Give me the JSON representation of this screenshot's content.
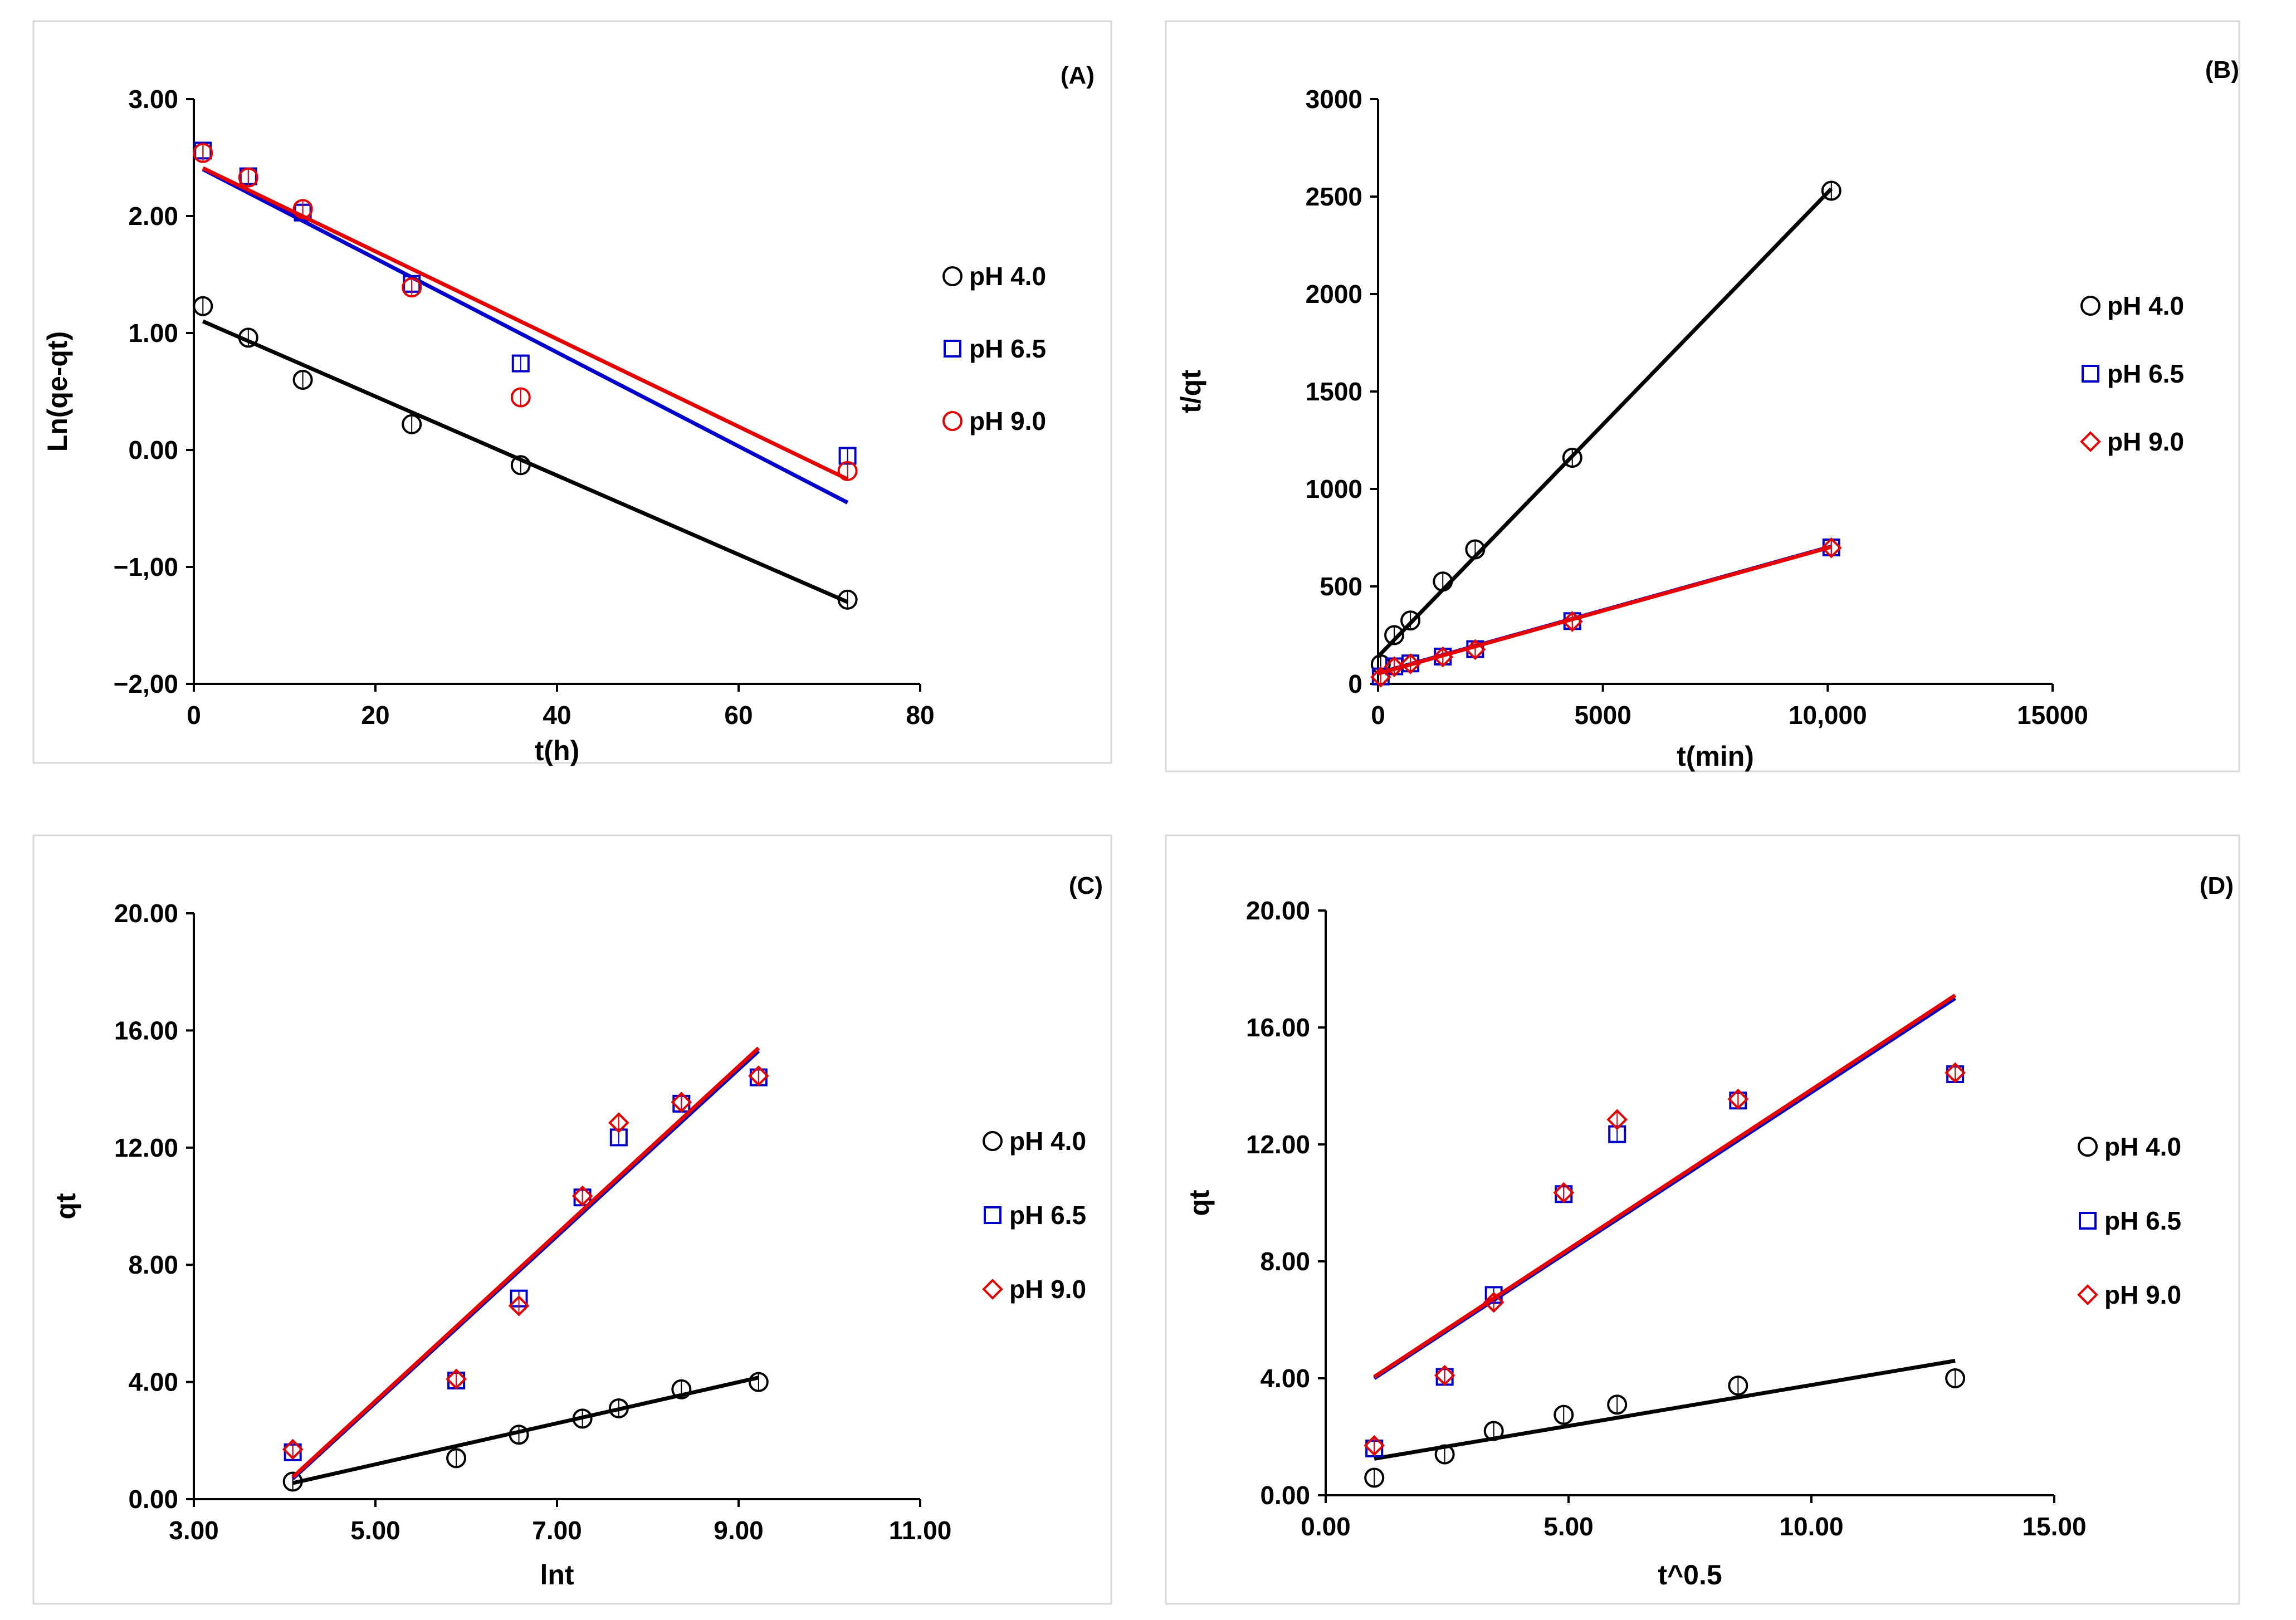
{
  "chart_data": [
    {
      "type": "scatter",
      "panel_label": "(A)",
      "xlabel": "t(h)",
      "ylabel": "Ln(qe-qt)",
      "xlim": [
        0,
        80
      ],
      "ylim": [
        -2,
        3
      ],
      "xticks": [
        0,
        20,
        40,
        60,
        80
      ],
      "xtick_labels": [
        "0",
        "20",
        "40",
        "60",
        "80"
      ],
      "yticks": [
        3,
        2,
        1,
        0,
        -1,
        -2
      ],
      "ytick_labels": [
        "3.00",
        "2.00",
        "1.00",
        "0.00",
        "−1,00",
        "−2,00"
      ],
      "legend_position": "right",
      "series": [
        {
          "name": "pH 4.0",
          "marker": "circle",
          "color": "#000000",
          "x": [
            1,
            6,
            12,
            24,
            36,
            72
          ],
          "y": [
            1.23,
            0.96,
            0.6,
            0.22,
            -0.13,
            -1.28
          ],
          "fit": {
            "x": [
              1,
              72
            ],
            "y": [
              1.1,
              -1.3
            ]
          }
        },
        {
          "name": "pH 6.5",
          "marker": "square",
          "color": "#0000cc",
          "x": [
            1,
            6,
            12,
            24,
            36,
            72
          ],
          "y": [
            2.56,
            2.34,
            2.03,
            1.42,
            0.74,
            -0.05
          ],
          "fit": {
            "x": [
              1,
              72
            ],
            "y": [
              2.4,
              -0.45
            ]
          }
        },
        {
          "name": "pH 9.0",
          "marker": "circle",
          "color": "#e60000",
          "x": [
            1,
            6,
            12,
            24,
            36,
            72
          ],
          "y": [
            2.54,
            2.33,
            2.06,
            1.39,
            0.45,
            -0.18
          ],
          "fit": {
            "x": [
              1,
              72
            ],
            "y": [
              2.41,
              -0.25
            ]
          }
        }
      ]
    },
    {
      "type": "scatter",
      "panel_label": "(B)",
      "xlabel": "t(min)",
      "ylabel": "t/qt",
      "xlim": [
        0,
        15000
      ],
      "ylim": [
        0,
        3000
      ],
      "xticks": [
        0,
        5000,
        10000,
        15000
      ],
      "xtick_labels": [
        "0",
        "5000",
        "10,000",
        "15000"
      ],
      "yticks": [
        0,
        500,
        1000,
        1500,
        2000,
        2500,
        3000
      ],
      "ytick_labels": [
        "0",
        "500",
        "1000",
        "1500",
        "2000",
        "2500",
        "3000"
      ],
      "legend_position": "right",
      "series": [
        {
          "name": "pH 4.0",
          "marker": "circle",
          "color": "#000000",
          "x": [
            60,
            360,
            720,
            1440,
            2160,
            4320,
            10080
          ],
          "y": [
            100,
            250,
            325,
            525,
            690,
            1160,
            2530
          ],
          "fit": {
            "x": [
              0,
              10080
            ],
            "y": [
              140,
              2540
            ]
          }
        },
        {
          "name": "pH 6.5",
          "marker": "square",
          "color": "#0000cc",
          "x": [
            60,
            360,
            720,
            1440,
            2160,
            4320,
            10080
          ],
          "y": [
            38,
            90,
            105,
            140,
            178,
            322,
            700
          ],
          "fit": {
            "x": [
              0,
              10080
            ],
            "y": [
              55,
              705
            ]
          }
        },
        {
          "name": "pH 9.0",
          "marker": "diamond",
          "color": "#e60000",
          "x": [
            60,
            360,
            720,
            1440,
            2160,
            4320,
            10080
          ],
          "y": [
            35,
            88,
            103,
            138,
            176,
            320,
            698
          ],
          "fit": {
            "x": [
              0,
              10080
            ],
            "y": [
              53,
              703
            ]
          }
        }
      ]
    },
    {
      "type": "scatter",
      "panel_label": "(C)",
      "xlabel": "lnt",
      "ylabel": "qt",
      "xlim": [
        3,
        11
      ],
      "ylim": [
        0,
        20
      ],
      "xticks": [
        3,
        5,
        7,
        9,
        11
      ],
      "xtick_labels": [
        "3.00",
        "5.00",
        "7.00",
        "9.00",
        "11.00"
      ],
      "yticks": [
        0,
        4,
        8,
        12,
        16,
        20
      ],
      "ytick_labels": [
        "0.00",
        "4.00",
        "8.00",
        "12.00",
        "16.00",
        "20.00"
      ],
      "legend_position": "right",
      "series": [
        {
          "name": "pH 4.0",
          "marker": "circle",
          "color": "#000000",
          "x": [
            4.09,
            5.89,
            6.58,
            7.28,
            7.68,
            8.37,
            9.22
          ],
          "y": [
            0.6,
            1.4,
            2.2,
            2.75,
            3.1,
            3.75,
            4.0
          ],
          "fit": {
            "x": [
              4.09,
              9.22
            ],
            "y": [
              0.55,
              4.15
            ]
          }
        },
        {
          "name": "pH 6.5",
          "marker": "square",
          "color": "#0000cc",
          "x": [
            4.09,
            5.89,
            6.58,
            7.28,
            7.68,
            8.37,
            9.22
          ],
          "y": [
            1.6,
            4.05,
            6.85,
            10.3,
            12.35,
            13.5,
            14.4
          ],
          "fit": {
            "x": [
              4.09,
              9.22
            ],
            "y": [
              0.7,
              15.3
            ]
          }
        },
        {
          "name": "pH 9.0",
          "marker": "diamond",
          "color": "#e60000",
          "x": [
            4.09,
            5.89,
            6.58,
            7.28,
            7.68,
            8.37,
            9.22
          ],
          "y": [
            1.7,
            4.1,
            6.6,
            10.35,
            12.85,
            13.55,
            14.45
          ],
          "fit": {
            "x": [
              4.09,
              9.22
            ],
            "y": [
              0.75,
              15.4
            ]
          }
        }
      ]
    },
    {
      "type": "scatter",
      "panel_label": "(D)",
      "xlabel": "t^0.5",
      "ylabel": "qt",
      "xlim": [
        0,
        15
      ],
      "ylim": [
        0,
        20
      ],
      "xticks": [
        0,
        5,
        10,
        15
      ],
      "xtick_labels": [
        "0.00",
        "5.00",
        "10.00",
        "15.00"
      ],
      "yticks": [
        0,
        4,
        8,
        12,
        16,
        20
      ],
      "ytick_labels": [
        "0.00",
        "4.00",
        "8.00",
        "12.00",
        "16.00",
        "20.00"
      ],
      "legend_position": "right",
      "series": [
        {
          "name": "pH 4.0",
          "marker": "circle",
          "color": "#000000",
          "x": [
            1,
            2.45,
            3.46,
            4.9,
            6.0,
            8.49,
            12.96
          ],
          "y": [
            0.6,
            1.4,
            2.2,
            2.75,
            3.1,
            3.75,
            4.0
          ],
          "fit": {
            "x": [
              1,
              12.96
            ],
            "y": [
              1.25,
              4.6
            ]
          }
        },
        {
          "name": "pH 6.5",
          "marker": "square",
          "color": "#0000cc",
          "x": [
            1,
            2.45,
            3.46,
            4.9,
            6.0,
            8.49,
            12.96
          ],
          "y": [
            1.6,
            4.05,
            6.85,
            10.3,
            12.35,
            13.5,
            14.4
          ],
          "fit": {
            "x": [
              1,
              12.96
            ],
            "y": [
              4.0,
              17.0
            ]
          }
        },
        {
          "name": "pH 9.0",
          "marker": "diamond",
          "color": "#e60000",
          "x": [
            1,
            2.45,
            3.46,
            4.9,
            6.0,
            8.49,
            12.96
          ],
          "y": [
            1.7,
            4.1,
            6.6,
            10.35,
            12.85,
            13.55,
            14.45
          ],
          "fit": {
            "x": [
              1,
              12.96
            ],
            "y": [
              4.05,
              17.1
            ]
          }
        }
      ]
    }
  ]
}
